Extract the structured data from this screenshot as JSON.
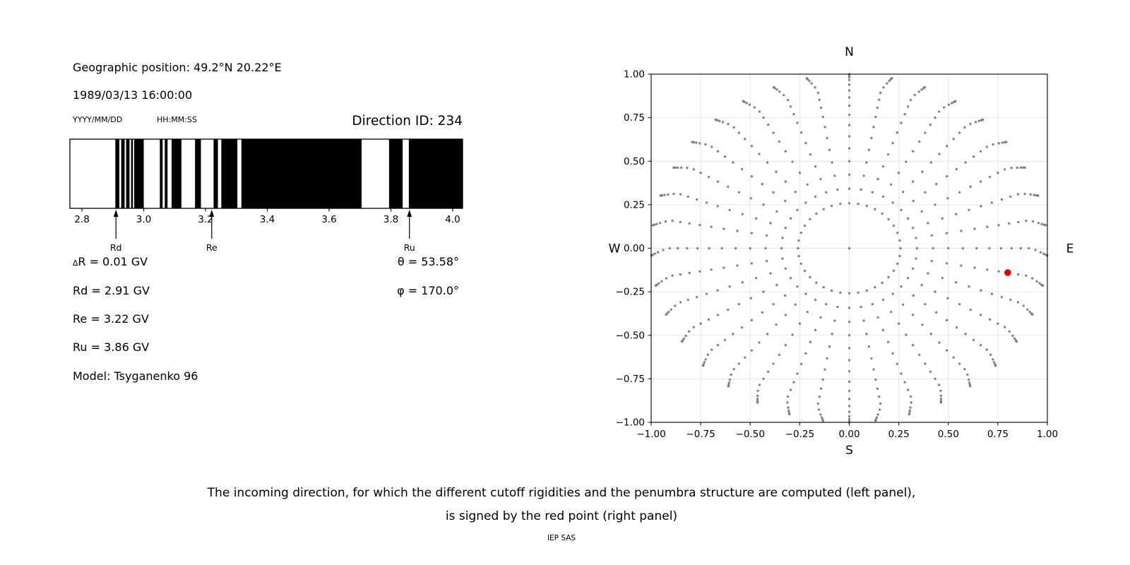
{
  "left_panel": {
    "geo_label": "Geographic position: 49.2°N 20.22°E",
    "datetime": "1989/03/13 16:00:00",
    "date_format": "YYYY/MM/DD",
    "time_format": "HH:MM:SS",
    "direction_id": "Direction ID: 234",
    "values": {
      "delta_sym": "∆",
      "delta_rest": "R = 0.01 GV",
      "rd": "Rd = 2.91 GV",
      "re": "Re = 3.22 GV",
      "ru": "Ru = 3.86 GV",
      "model": "Model: Tsyganenko 96",
      "theta": "θ = 53.58°",
      "phi": "φ = 170.0°"
    }
  },
  "caption": {
    "line1": "The incoming direction, for which the different cutoff rigidities and the penumbra structure are computed (left panel),",
    "line2": "is signed by the red point (right panel)",
    "credit": "IEP SAS"
  },
  "chart_data": [
    {
      "name": "penumbra-barcode",
      "type": "bar",
      "xlim": [
        2.761,
        4.032
      ],
      "xticks": [
        2.8,
        3.0,
        3.2,
        3.4,
        3.6,
        3.8,
        4.0
      ],
      "bar_color": "#000000",
      "background": "#ffffff",
      "allowed_intervals_gv": [
        [
          2.908,
          2.921
        ],
        [
          2.927,
          2.938
        ],
        [
          2.943,
          2.954
        ],
        [
          2.959,
          2.965
        ],
        [
          2.969,
          3.0
        ],
        [
          3.052,
          3.061
        ],
        [
          3.068,
          3.077
        ],
        [
          3.09,
          3.122
        ],
        [
          3.166,
          3.185
        ],
        [
          3.226,
          3.24
        ],
        [
          3.251,
          3.303
        ],
        [
          3.316,
          3.705
        ],
        [
          3.794,
          3.838
        ],
        [
          3.858,
          4.032
        ]
      ],
      "arrows": [
        {
          "label": "Rd",
          "value": 2.91
        },
        {
          "label": "Re",
          "value": 3.22
        },
        {
          "label": "Ru",
          "value": 3.86
        }
      ]
    },
    {
      "name": "incoming-direction-grid",
      "type": "scatter",
      "xlim": [
        -1.0,
        1.0
      ],
      "ylim": [
        -1.0,
        1.0
      ],
      "xticks": [
        -1.0,
        -0.75,
        -0.5,
        -0.25,
        0.0,
        0.25,
        0.5,
        0.75,
        1.0
      ],
      "yticks": [
        -1.0,
        -0.75,
        -0.5,
        -0.25,
        0.0,
        0.25,
        0.5,
        0.75,
        1.0
      ],
      "grid": true,
      "grid_color": "#e6e6e6",
      "dot_color": "#848484",
      "compass": {
        "n": "N",
        "s": "S",
        "e": "E",
        "w": "W"
      },
      "spokes": {
        "count": 36,
        "azimuth_step_deg": 10,
        "zenith_angles_deg": [
          15,
          20,
          25,
          30,
          35,
          40,
          45,
          50,
          55,
          60,
          65,
          70,
          75,
          79,
          83,
          86,
          88,
          90
        ],
        "radius_rule": "sin(zenith)",
        "outer_twist_start_r": 0.92,
        "outer_twist_gain_deg": 30,
        "center_dot": true
      },
      "red_point": {
        "x": 0.8,
        "y": -0.14,
        "color": "#e50000"
      }
    }
  ]
}
